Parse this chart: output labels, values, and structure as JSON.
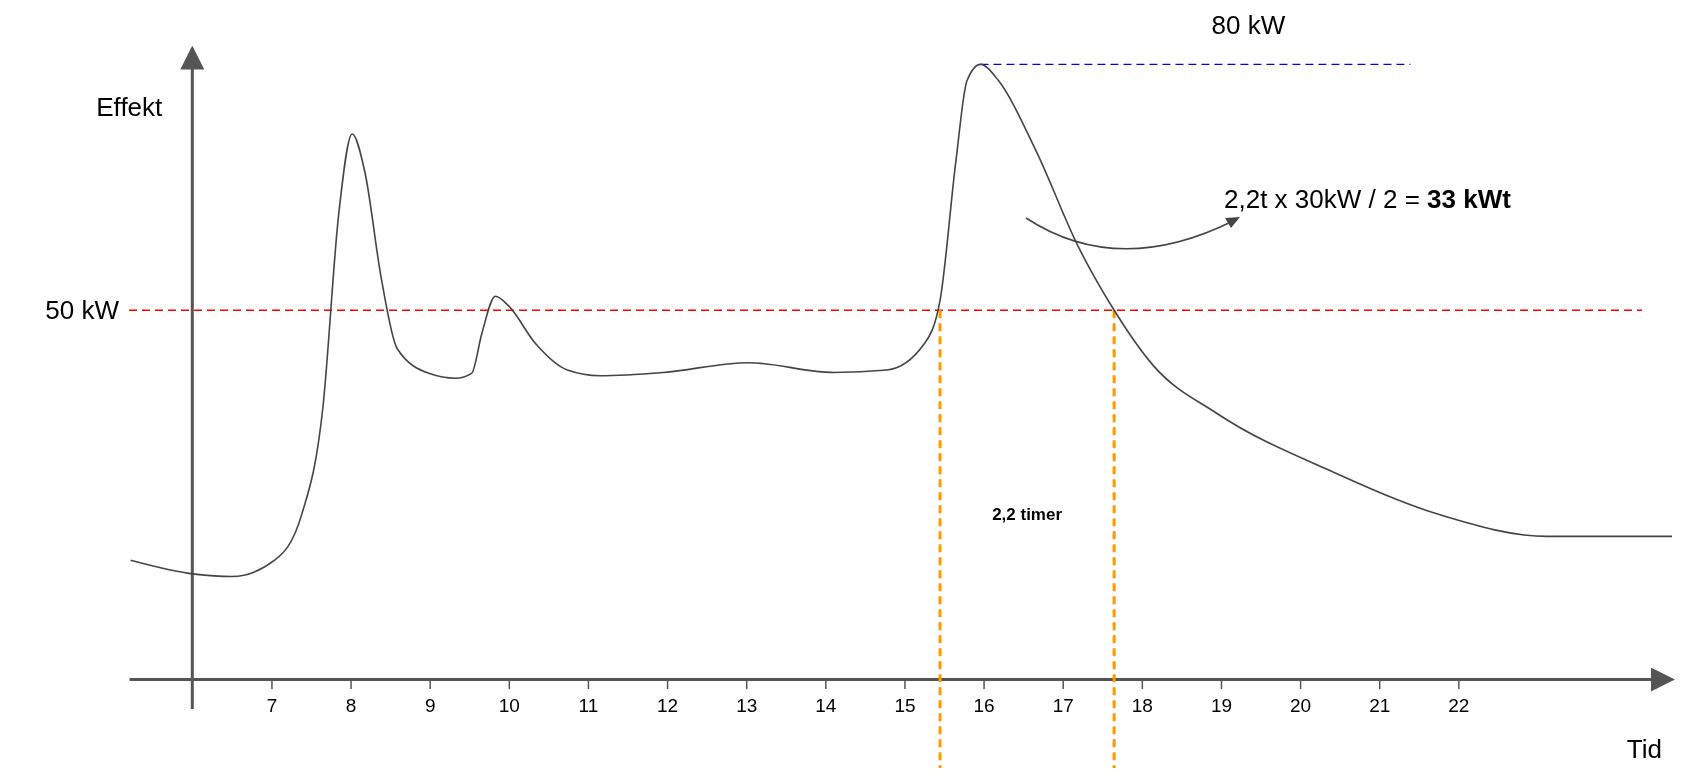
{
  "chart_data": {
    "type": "line",
    "xlabel": "Tid",
    "ylabel": "Effekt",
    "xlim": [
      5.2,
      24.7
    ],
    "ylim": [
      5,
      82
    ],
    "xticks": [
      7,
      8,
      9,
      10,
      11,
      12,
      13,
      14,
      15,
      16,
      17,
      18,
      19,
      20,
      21,
      22
    ],
    "tick_labels": "x",
    "grid": false,
    "marker": "none",
    "line_style": "solid",
    "series": [
      {
        "color": "#444444",
        "x": [
          5.22,
          6.03,
          6.5,
          7.04,
          7.38,
          7.65,
          7.85,
          8.02,
          8.18,
          8.39,
          8.59,
          8.99,
          9.33,
          9.53,
          9.66,
          9.83,
          10.0,
          10.34,
          10.74,
          11.15,
          11.95,
          13.03,
          14.11,
          14.78,
          15.25,
          15.45,
          15.65,
          15.79,
          15.96,
          16.19,
          16.66,
          17.2,
          17.65,
          18.14,
          18.95,
          20.43,
          21.78,
          23.12,
          24.7
        ],
        "values": [
          19.5,
          17.8,
          17.5,
          19.5,
          25.0,
          38.1,
          61.7,
          71.5,
          66.9,
          53.8,
          45.3,
          42.3,
          41.7,
          42.3,
          47.2,
          51.7,
          50.5,
          45.9,
          42.7,
          42.0,
          42.4,
          43.6,
          42.4,
          42.7,
          45.9,
          51.2,
          68.2,
          78.0,
          80.0,
          78.0,
          69.5,
          57.7,
          50.0,
          43.3,
          37.4,
          30.2,
          25.0,
          22.4,
          22.4
        ]
      }
    ],
    "ref_lines": [
      {
        "axis": "y",
        "value": 50,
        "label": "50 kW",
        "color": "#ff0000",
        "line_style": "dashed"
      },
      {
        "axis": "y",
        "value": 80,
        "label": "80 kW",
        "color": "#0000ff",
        "line_style": "dashed"
      },
      {
        "axis": "x",
        "value": 6,
        "color": "#555555",
        "line_style": "solid"
      },
      {
        "axis": "x",
        "value": 15.45,
        "color": "#ff9900",
        "line_style": "dashed"
      },
      {
        "axis": "x",
        "value": 17.65,
        "color": "#ff9900",
        "line_style": "dashed"
      }
    ],
    "annotations": [
      "2,2 timer",
      "2,2t x 30kW / 2 = 33 kWt"
    ]
  }
}
